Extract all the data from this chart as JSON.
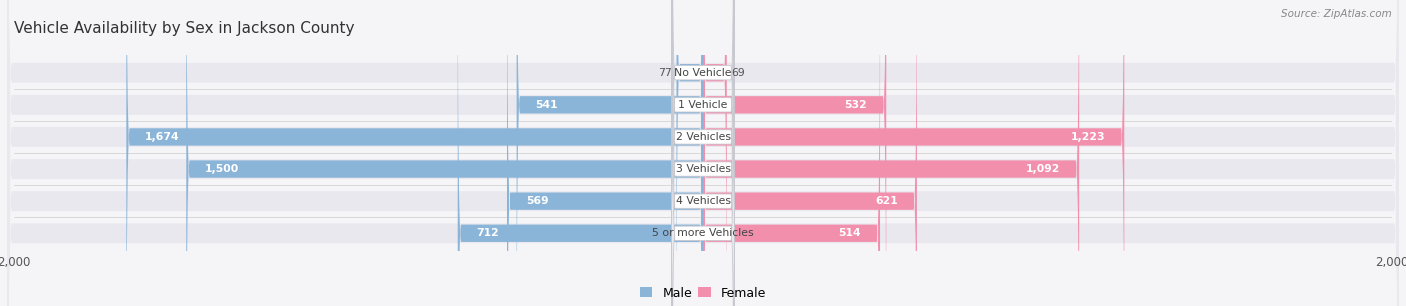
{
  "title": "Vehicle Availability by Sex in Jackson County",
  "source": "Source: ZipAtlas.com",
  "categories": [
    "No Vehicle",
    "1 Vehicle",
    "2 Vehicles",
    "3 Vehicles",
    "4 Vehicles",
    "5 or more Vehicles"
  ],
  "male_values": [
    77,
    541,
    1674,
    1500,
    569,
    712
  ],
  "female_values": [
    69,
    532,
    1223,
    1092,
    621,
    514
  ],
  "male_color": "#8ab4d8",
  "female_color": "#f28fad",
  "bar_bg_color": "#e8e8ee",
  "title_color": "#333333",
  "source_color": "#888888",
  "axis_max": 2000,
  "figsize": [
    14.06,
    3.06
  ],
  "dpi": 100,
  "bg_color": "#f5f5f8"
}
